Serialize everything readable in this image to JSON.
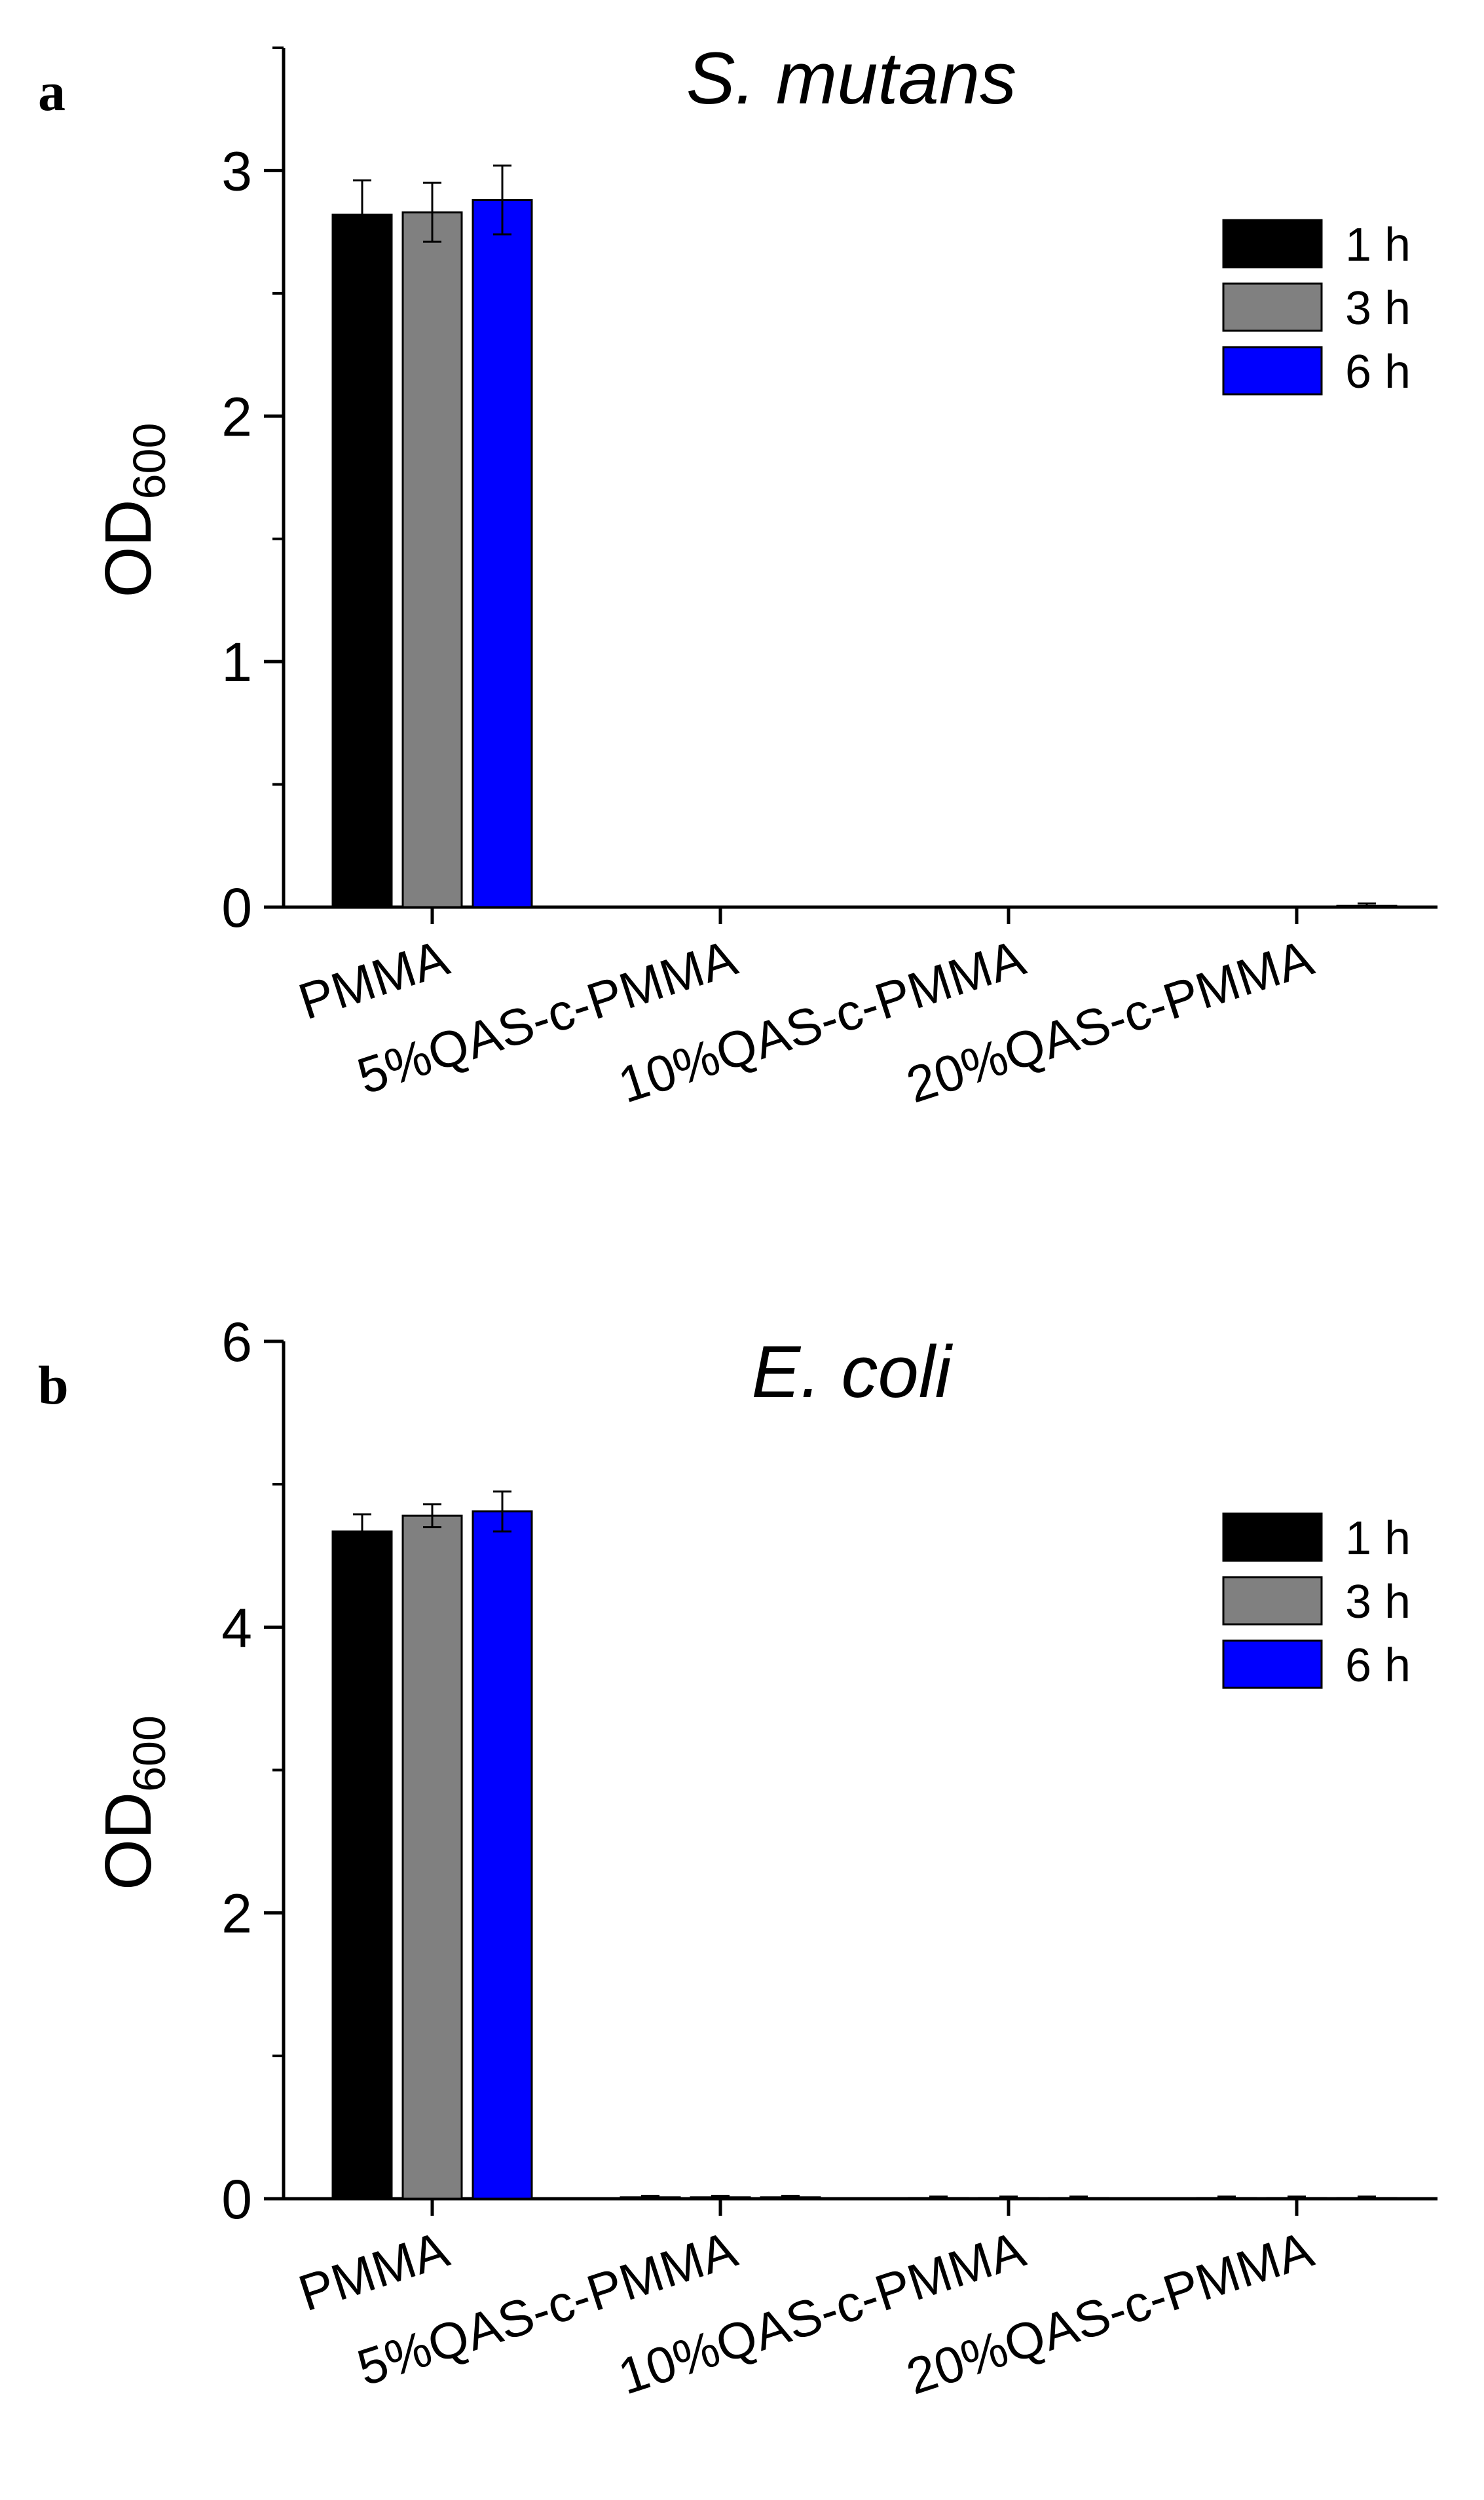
{
  "figure": {
    "panels": [
      {
        "letter": "a",
        "title": "S. mutans"
      },
      {
        "letter": "b",
        "title": "E. coli"
      }
    ]
  },
  "chart_data": [
    {
      "type": "bar",
      "title": "S. mutans",
      "panel_label": "a",
      "xlabel": "",
      "ylabel": {
        "main": "OD",
        "subscript": "600"
      },
      "categories": [
        "PMMA",
        "5%QAS-c-PMMA",
        "10%QAS-c-PMMA",
        "20%QAS-c-PMMA"
      ],
      "ylim": [
        0,
        3.5
      ],
      "yticks": [
        0,
        1,
        2,
        3
      ],
      "yminor_step": 0.5,
      "series": [
        {
          "name": "1 h",
          "color": "#000000",
          "values": [
            2.82,
            0,
            0,
            0
          ],
          "errors": [
            0.14,
            0,
            0,
            0
          ]
        },
        {
          "name": "3 h",
          "color": "#808080",
          "values": [
            2.83,
            0,
            0,
            0
          ],
          "errors": [
            0.12,
            0,
            0,
            0
          ]
        },
        {
          "name": "6 h",
          "color": "#0000FF",
          "values": [
            2.88,
            0,
            0,
            0.005
          ],
          "errors": [
            0.14,
            0,
            0,
            0.01
          ]
        }
      ],
      "legend": "top-right",
      "grid": false
    },
    {
      "type": "bar",
      "title": "E. coli",
      "panel_label": "b",
      "xlabel": "",
      "ylabel": {
        "main": "OD",
        "subscript": "600"
      },
      "categories": [
        "PMMA",
        "5%QAS-c-PMMA",
        "10%QAS-c-PMMA",
        "20%QAS-c-PMMA"
      ],
      "ylim": [
        0,
        6
      ],
      "yticks": [
        0,
        2,
        4,
        6
      ],
      "yminor_step": 1,
      "series": [
        {
          "name": "1 h",
          "color": "#000000",
          "values": [
            4.67,
            0.01,
            0.005,
            0.005
          ],
          "errors": [
            0.12,
            0.01,
            0.01,
            0.01
          ]
        },
        {
          "name": "3 h",
          "color": "#808080",
          "values": [
            4.78,
            0.01,
            0.005,
            0.005
          ],
          "errors": [
            0.08,
            0.01,
            0.01,
            0.01
          ]
        },
        {
          "name": "6 h",
          "color": "#0000FF",
          "values": [
            4.81,
            0.01,
            0.005,
            0.005
          ],
          "errors": [
            0.14,
            0.01,
            0.01,
            0.01
          ]
        }
      ],
      "legend": "top-right",
      "grid": false
    }
  ]
}
